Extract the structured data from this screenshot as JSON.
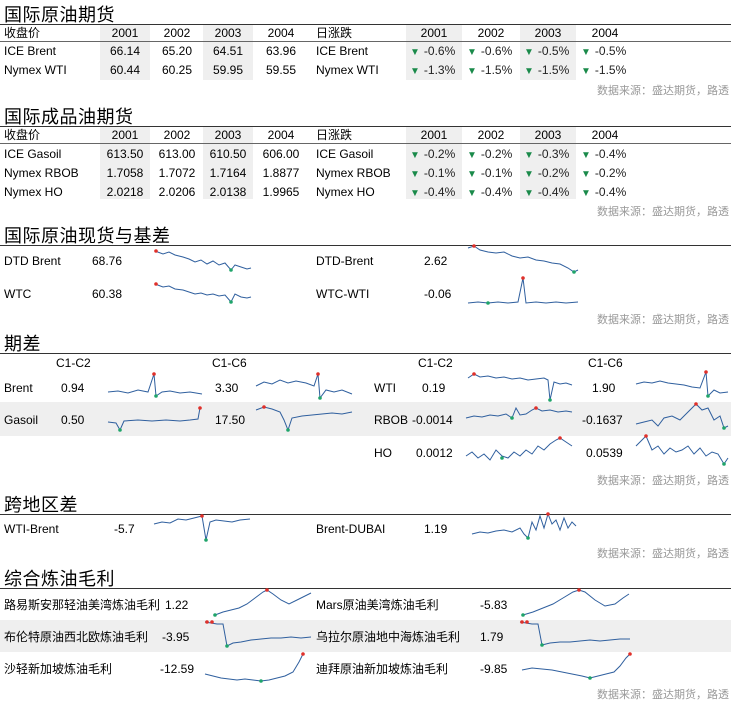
{
  "source_note": "数据来源：盛达期货，路透",
  "crude_futures": {
    "title": "国际原油期货",
    "close_label": "收盘价",
    "change_label": "日涨跌",
    "months": [
      "2001",
      "2002",
      "2003",
      "2004"
    ],
    "rows": [
      {
        "name": "ICE Brent",
        "prices": [
          "66.14",
          "65.20",
          "64.51",
          "63.96"
        ],
        "changes": [
          "-0.6%",
          "-0.6%",
          "-0.5%",
          "-0.5%"
        ]
      },
      {
        "name": "Nymex WTI",
        "prices": [
          "60.44",
          "60.25",
          "59.95",
          "59.55"
        ],
        "changes": [
          "-1.3%",
          "-1.5%",
          "-1.5%",
          "-1.5%"
        ]
      }
    ]
  },
  "product_futures": {
    "title": "国际成品油期货",
    "close_label": "收盘价",
    "change_label": "日涨跌",
    "months": [
      "2001",
      "2002",
      "2003",
      "2004"
    ],
    "rows": [
      {
        "name": "ICE Gasoil",
        "prices": [
          "613.50",
          "613.00",
          "610.50",
          "606.00"
        ],
        "changes": [
          "-0.2%",
          "-0.2%",
          "-0.3%",
          "-0.4%"
        ]
      },
      {
        "name": "Nymex RBOB",
        "prices": [
          "1.7058",
          "1.7072",
          "1.7164",
          "1.8877"
        ],
        "changes": [
          "-0.1%",
          "-0.1%",
          "-0.2%",
          "-0.2%"
        ]
      },
      {
        "name": "Nymex HO",
        "prices": [
          "2.0218",
          "2.0206",
          "2.0138",
          "1.9965"
        ],
        "changes": [
          "-0.4%",
          "-0.4%",
          "-0.4%",
          "-0.4%"
        ]
      }
    ]
  },
  "spot_basis": {
    "title": "国际原油现货与基差",
    "items": [
      {
        "name": "DTD Brent",
        "value": "68.76"
      },
      {
        "name": "DTD-Brent",
        "value": "2.62"
      },
      {
        "name": "WTC",
        "value": "60.38"
      },
      {
        "name": "WTC-WTI",
        "value": "-0.06"
      }
    ]
  },
  "spreads": {
    "title": "期差",
    "headers": [
      "C1-C2",
      "C1-C6",
      "C1-C2",
      "C1-C6"
    ],
    "left_rows": [
      {
        "name": "Brent",
        "c1c2": "0.94",
        "c1c6": "3.30"
      },
      {
        "name": "Gasoil",
        "c1c2": "0.50",
        "c1c6": "17.50"
      }
    ],
    "right_rows": [
      {
        "name": "WTI",
        "c1c2": "0.19",
        "c1c6": "1.90"
      },
      {
        "name": "RBOB",
        "c1c2": "-0.0014",
        "c1c6": "-0.1637"
      },
      {
        "name": "HO",
        "c1c2": "0.0012",
        "c1c6": "0.0539"
      }
    ]
  },
  "cross_region": {
    "title": "跨地区差",
    "items": [
      {
        "name": "WTI-Brent",
        "value": "-5.7"
      },
      {
        "name": "Brent-DUBAI",
        "value": "1.19"
      }
    ]
  },
  "refining_margins": {
    "title": "综合炼油毛利",
    "items": [
      {
        "name": "路易斯安那轻油美湾炼油毛利",
        "value": "1.22"
      },
      {
        "name": "Mars原油美湾炼油毛利",
        "value": "-5.83"
      },
      {
        "name": "布伦特原油西北欧炼油毛利",
        "value": "-3.95"
      },
      {
        "name": "乌拉尔原油地中海炼油毛利",
        "value": "1.79"
      },
      {
        "name": "沙轻新加坡炼油毛利",
        "value": "-12.59"
      },
      {
        "name": "迪拜原油新加坡炼油毛利",
        "value": "-9.85"
      }
    ]
  }
}
